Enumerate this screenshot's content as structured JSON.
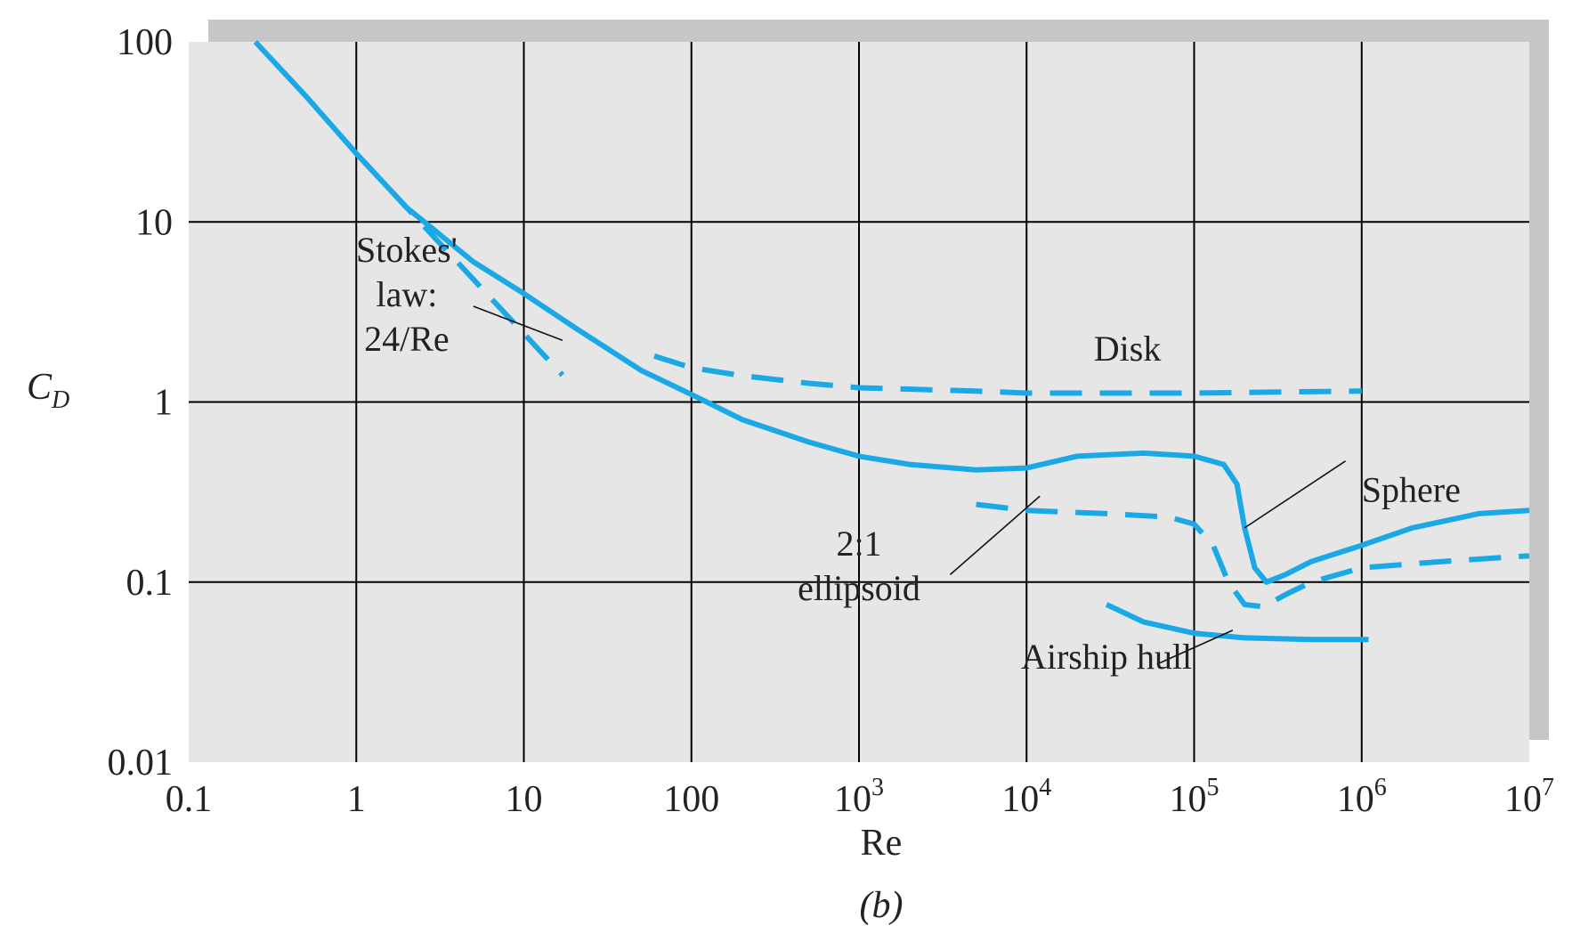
{
  "chart_data": {
    "type": "line",
    "caption": "(b)",
    "xlabel": "Re",
    "ylabel": {
      "main": "C",
      "sub": "D"
    },
    "x_scale": "log",
    "y_scale": "log",
    "xlim": [
      0.1,
      10000000
    ],
    "ylim": [
      0.01,
      100
    ],
    "grid": true,
    "x_ticks": [
      {
        "value": 0.1,
        "label": "0.1"
      },
      {
        "value": 1,
        "label": "1"
      },
      {
        "value": 10,
        "label": "10"
      },
      {
        "value": 100,
        "label": "100"
      },
      {
        "value": 1000,
        "base": "10",
        "exp": "3"
      },
      {
        "value": 10000,
        "base": "10",
        "exp": "4"
      },
      {
        "value": 100000,
        "base": "10",
        "exp": "5"
      },
      {
        "value": 1000000,
        "base": "10",
        "exp": "6"
      },
      {
        "value": 10000000,
        "base": "10",
        "exp": "7"
      }
    ],
    "y_ticks": [
      {
        "value": 100,
        "label": "100"
      },
      {
        "value": 10,
        "label": "10"
      },
      {
        "value": 1,
        "label": "1"
      },
      {
        "value": 0.1,
        "label": "0.1"
      },
      {
        "value": 0.01,
        "label": "0.01"
      }
    ],
    "series_color": "#1aa9e6",
    "series": [
      {
        "id": "sphere",
        "style": "solid",
        "x": [
          0.25,
          0.5,
          1,
          2,
          5,
          10,
          20,
          50,
          100,
          200,
          500,
          1000,
          2000,
          5000,
          10000,
          20000,
          50000,
          100000,
          150000,
          180000,
          200000,
          230000,
          270000,
          350000,
          500000,
          1000000,
          2000000,
          5000000,
          10000000
        ],
        "y": [
          100,
          50,
          24,
          12,
          6,
          4,
          2.6,
          1.5,
          1.1,
          0.8,
          0.6,
          0.5,
          0.45,
          0.42,
          0.43,
          0.5,
          0.52,
          0.5,
          0.45,
          0.35,
          0.2,
          0.12,
          0.1,
          0.11,
          0.13,
          0.16,
          0.2,
          0.24,
          0.25
        ]
      },
      {
        "id": "stokes",
        "style": "dashed",
        "x": [
          1,
          2,
          5,
          10,
          17
        ],
        "y": [
          24,
          12,
          4.8,
          2.4,
          1.41
        ]
      },
      {
        "id": "disk",
        "style": "dashed",
        "x": [
          60,
          100,
          200,
          500,
          1000,
          5000,
          10000,
          100000,
          1000000
        ],
        "y": [
          1.8,
          1.55,
          1.4,
          1.27,
          1.2,
          1.15,
          1.12,
          1.12,
          1.15
        ]
      },
      {
        "id": "ellipsoid",
        "style": "dashed",
        "x": [
          5000,
          10000,
          30000,
          70000,
          100000,
          130000,
          160000,
          200000,
          260000,
          350000,
          500000,
          1000000,
          3000000,
          10000000
        ],
        "y": [
          0.27,
          0.25,
          0.24,
          0.23,
          0.21,
          0.16,
          0.1,
          0.075,
          0.073,
          0.085,
          0.1,
          0.12,
          0.13,
          0.14
        ]
      },
      {
        "id": "airship",
        "style": "solid",
        "x": [
          30000,
          50000,
          100000,
          200000,
          500000,
          1000000,
          1100000
        ],
        "y": [
          0.075,
          0.06,
          0.052,
          0.049,
          0.048,
          0.048,
          0.048
        ]
      }
    ],
    "annotations": [
      {
        "id": "stokes",
        "lines": [
          "Stokes'",
          "law:",
          "24/Re"
        ],
        "x": 2,
        "y": 6,
        "anchor": "middle",
        "leader": [
          [
            5.0,
            3.4
          ],
          [
            17,
            2.2
          ]
        ]
      },
      {
        "id": "disk",
        "lines": [
          "Disk"
        ],
        "x": 40000,
        "y": 1.7,
        "anchor": "middle",
        "leader": null
      },
      {
        "id": "sphere",
        "lines": [
          "Sphere"
        ],
        "x": 1000000,
        "y": 0.28,
        "anchor": "start",
        "leader": [
          [
            200000,
            0.2
          ],
          [
            800000,
            0.47
          ]
        ]
      },
      {
        "id": "ellipsoid",
        "lines": [
          "2:1",
          "ellipsoid"
        ],
        "x": 1000,
        "y": 0.14,
        "anchor": "middle",
        "leader": [
          [
            12000,
            0.3
          ],
          [
            3500,
            0.11
          ]
        ]
      },
      {
        "id": "airship",
        "lines": [
          "Airship hull"
        ],
        "x": 30000,
        "y": 0.033,
        "anchor": "middle",
        "leader": [
          [
            170000,
            0.054
          ],
          [
            60000,
            0.035
          ]
        ]
      }
    ]
  }
}
